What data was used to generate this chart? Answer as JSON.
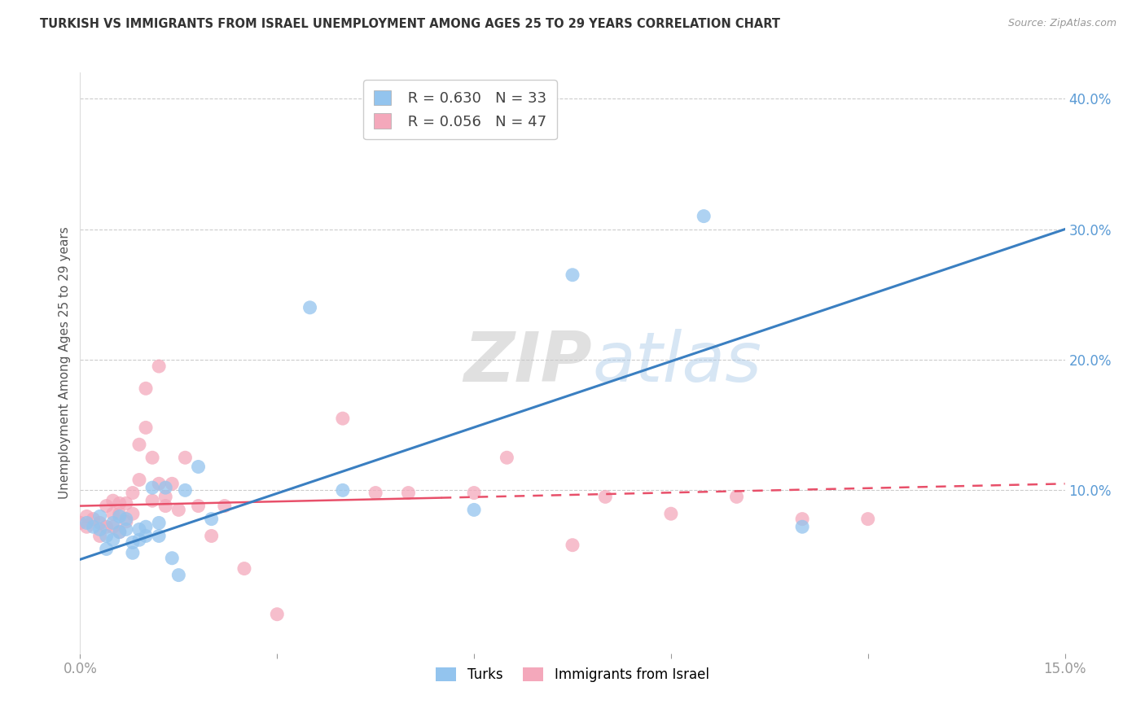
{
  "title": "TURKISH VS IMMIGRANTS FROM ISRAEL UNEMPLOYMENT AMONG AGES 25 TO 29 YEARS CORRELATION CHART",
  "source": "Source: ZipAtlas.com",
  "ylabel": "Unemployment Among Ages 25 to 29 years",
  "xlim": [
    0.0,
    0.15
  ],
  "ylim": [
    -0.025,
    0.42
  ],
  "xticks": [
    0.0,
    0.03,
    0.06,
    0.09,
    0.12,
    0.15
  ],
  "xtick_labels": [
    "0.0%",
    "",
    "",
    "",
    "",
    "15.0%"
  ],
  "yticks_right": [
    0.0,
    0.1,
    0.2,
    0.3,
    0.4
  ],
  "ytick_right_labels": [
    "",
    "10.0%",
    "20.0%",
    "30.0%",
    "40.0%"
  ],
  "turks_R": 0.63,
  "turks_N": 33,
  "israel_R": 0.056,
  "israel_N": 47,
  "turks_color": "#93C4EE",
  "israel_color": "#F4A8BB",
  "turks_line_color": "#3A7FC1",
  "israel_line_color": "#E8506A",
  "watermark_zip": "ZIP",
  "watermark_atlas": "atlas",
  "turks_x": [
    0.001,
    0.002,
    0.003,
    0.003,
    0.004,
    0.004,
    0.005,
    0.005,
    0.006,
    0.006,
    0.007,
    0.007,
    0.008,
    0.008,
    0.009,
    0.009,
    0.01,
    0.01,
    0.011,
    0.012,
    0.012,
    0.013,
    0.014,
    0.015,
    0.016,
    0.018,
    0.02,
    0.035,
    0.04,
    0.06,
    0.075,
    0.095,
    0.11
  ],
  "turks_y": [
    0.075,
    0.072,
    0.08,
    0.07,
    0.065,
    0.055,
    0.075,
    0.062,
    0.08,
    0.068,
    0.078,
    0.07,
    0.06,
    0.052,
    0.07,
    0.062,
    0.072,
    0.065,
    0.102,
    0.075,
    0.065,
    0.102,
    0.048,
    0.035,
    0.1,
    0.118,
    0.078,
    0.24,
    0.1,
    0.085,
    0.265,
    0.31,
    0.072
  ],
  "israel_x": [
    0.0,
    0.001,
    0.001,
    0.002,
    0.003,
    0.003,
    0.004,
    0.004,
    0.005,
    0.005,
    0.005,
    0.006,
    0.006,
    0.006,
    0.007,
    0.007,
    0.008,
    0.008,
    0.009,
    0.009,
    0.01,
    0.01,
    0.011,
    0.011,
    0.012,
    0.012,
    0.013,
    0.013,
    0.014,
    0.015,
    0.016,
    0.018,
    0.02,
    0.022,
    0.025,
    0.03,
    0.04,
    0.045,
    0.05,
    0.06,
    0.065,
    0.075,
    0.08,
    0.09,
    0.1,
    0.11,
    0.12
  ],
  "israel_y": [
    0.075,
    0.08,
    0.072,
    0.078,
    0.075,
    0.065,
    0.088,
    0.072,
    0.092,
    0.082,
    0.072,
    0.09,
    0.082,
    0.068,
    0.09,
    0.076,
    0.098,
    0.082,
    0.135,
    0.108,
    0.178,
    0.148,
    0.125,
    0.092,
    0.195,
    0.105,
    0.095,
    0.088,
    0.105,
    0.085,
    0.125,
    0.088,
    0.065,
    0.088,
    0.04,
    0.005,
    0.155,
    0.098,
    0.098,
    0.098,
    0.125,
    0.058,
    0.095,
    0.082,
    0.095,
    0.078,
    0.078
  ]
}
